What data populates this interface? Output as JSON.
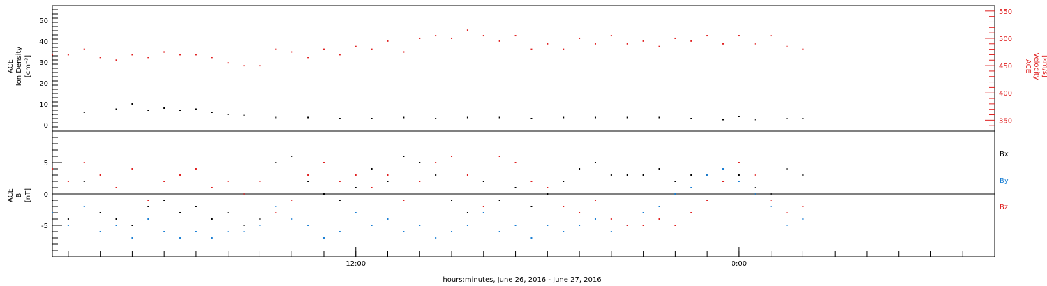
{
  "colors": {
    "density": "#000000",
    "velocity": "#e02020",
    "bx": "#000000",
    "by": "#1a7fd4",
    "bz": "#e02020",
    "axis": "#000000"
  },
  "x_axis": {
    "label": "hours:minutes, June 26, 2016 - June 27, 2016",
    "range_hours": [
      5,
      34.5
    ],
    "ticks": [
      {
        "hour": 14.5,
        "label": "12:00"
      },
      {
        "hour": 26.5,
        "label": "0:00"
      }
    ]
  },
  "chart_data": [
    {
      "type": "scatter",
      "panel": "top",
      "ylabel_left": [
        "ACE",
        "Ion Density",
        "[cm⁻³]"
      ],
      "ylabel_right": [
        "ACE",
        "Velocity",
        "[km/s]"
      ],
      "left_axis": {
        "range": [
          -3,
          57
        ],
        "ticks": [
          0,
          10,
          20,
          30,
          40,
          50
        ],
        "labels": [
          "0",
          "10",
          "20",
          "30",
          "40",
          "50"
        ]
      },
      "right_axis": {
        "range": [
          330,
          560
        ],
        "ticks": [
          350,
          400,
          450,
          500,
          550
        ],
        "labels": [
          "350",
          "400",
          "450",
          "500",
          "550"
        ]
      },
      "series": [
        {
          "key": "density",
          "axis": "left",
          "points": [
            [
              5.0,
              5
            ],
            [
              6.0,
              6
            ],
            [
              7.0,
              7.5
            ],
            [
              7.5,
              10
            ],
            [
              8.0,
              7
            ],
            [
              8.5,
              8
            ],
            [
              9.0,
              7
            ],
            [
              9.5,
              7.5
            ],
            [
              10.0,
              6
            ],
            [
              10.5,
              5
            ],
            [
              11.0,
              4.5
            ],
            [
              12.0,
              3.5
            ],
            [
              13.0,
              3.5
            ],
            [
              14.0,
              3
            ],
            [
              15.0,
              3
            ],
            [
              16.0,
              3.5
            ],
            [
              17.0,
              3
            ],
            [
              18.0,
              3.5
            ],
            [
              19.0,
              3.5
            ],
            [
              20.0,
              3
            ],
            [
              21.0,
              3.5
            ],
            [
              22.0,
              3.5
            ],
            [
              23.0,
              3.5
            ],
            [
              24.0,
              3.5
            ],
            [
              25.0,
              3
            ],
            [
              26.0,
              2.5
            ],
            [
              26.5,
              4
            ],
            [
              27.0,
              2.5
            ],
            [
              28.0,
              3
            ],
            [
              28.5,
              3
            ]
          ]
        },
        {
          "key": "velocity",
          "axis": "right",
          "points": [
            [
              5.0,
              470
            ],
            [
              5.5,
              470
            ],
            [
              6.0,
              480
            ],
            [
              6.5,
              465
            ],
            [
              7.0,
              460
            ],
            [
              7.5,
              470
            ],
            [
              8.0,
              465
            ],
            [
              8.5,
              475
            ],
            [
              9.0,
              470
            ],
            [
              9.5,
              470
            ],
            [
              10.0,
              465
            ],
            [
              10.5,
              455
            ],
            [
              11.0,
              450
            ],
            [
              11.5,
              450
            ],
            [
              12.0,
              480
            ],
            [
              12.5,
              475
            ],
            [
              13.0,
              465
            ],
            [
              13.5,
              480
            ],
            [
              14.0,
              470
            ],
            [
              14.5,
              485
            ],
            [
              15.0,
              480
            ],
            [
              15.5,
              495
            ],
            [
              16.0,
              475
            ],
            [
              16.5,
              500
            ],
            [
              17.0,
              505
            ],
            [
              17.5,
              500
            ],
            [
              18.0,
              515
            ],
            [
              18.5,
              505
            ],
            [
              19.0,
              495
            ],
            [
              19.5,
              505
            ],
            [
              20.0,
              480
            ],
            [
              20.5,
              490
            ],
            [
              21.0,
              480
            ],
            [
              21.5,
              500
            ],
            [
              22.0,
              490
            ],
            [
              22.5,
              505
            ],
            [
              23.0,
              490
            ],
            [
              23.5,
              495
            ],
            [
              24.0,
              485
            ],
            [
              24.5,
              500
            ],
            [
              25.0,
              495
            ],
            [
              25.5,
              505
            ],
            [
              26.0,
              490
            ],
            [
              26.5,
              505
            ],
            [
              27.0,
              490
            ],
            [
              27.5,
              505
            ],
            [
              28.0,
              485
            ],
            [
              28.5,
              480
            ]
          ]
        }
      ]
    },
    {
      "type": "scatter",
      "panel": "bottom",
      "ylabel_left": [
        "ACE",
        "B",
        "[nT]"
      ],
      "left_axis": {
        "range": [
          -10,
          10
        ],
        "ticks": [
          -5,
          0,
          5
        ],
        "labels": [
          "-5",
          "0",
          "5"
        ]
      },
      "legend": [
        "Bx",
        "By",
        "Bz"
      ],
      "series": [
        {
          "key": "bx",
          "name": "Bx",
          "points": [
            [
              5.0,
              -1
            ],
            [
              5.5,
              -4
            ],
            [
              6.0,
              2
            ],
            [
              6.5,
              -3
            ],
            [
              7.0,
              -4
            ],
            [
              7.5,
              -5
            ],
            [
              8.0,
              -2
            ],
            [
              8.5,
              -1
            ],
            [
              9.0,
              -3
            ],
            [
              9.5,
              -2
            ],
            [
              10.0,
              -4
            ],
            [
              10.5,
              -3
            ],
            [
              11.0,
              -5
            ],
            [
              11.5,
              -4
            ],
            [
              12.0,
              5
            ],
            [
              12.5,
              6
            ],
            [
              13.0,
              2
            ],
            [
              13.5,
              0
            ],
            [
              14.0,
              -1
            ],
            [
              14.5,
              1
            ],
            [
              15.0,
              4
            ],
            [
              15.5,
              2
            ],
            [
              16.0,
              6
            ],
            [
              16.5,
              5
            ],
            [
              17.0,
              3
            ],
            [
              17.5,
              -1
            ],
            [
              18.0,
              -3
            ],
            [
              18.5,
              2
            ],
            [
              19.0,
              -1
            ],
            [
              19.5,
              1
            ],
            [
              20.0,
              -2
            ],
            [
              20.5,
              0
            ],
            [
              21.0,
              2
            ],
            [
              21.5,
              4
            ],
            [
              22.0,
              5
            ],
            [
              22.5,
              3
            ],
            [
              23.0,
              3
            ],
            [
              23.5,
              3
            ],
            [
              24.0,
              4
            ],
            [
              24.5,
              2
            ],
            [
              25.0,
              3
            ],
            [
              25.5,
              3
            ],
            [
              26.0,
              2
            ],
            [
              26.5,
              3
            ],
            [
              27.0,
              1
            ],
            [
              27.5,
              0
            ],
            [
              28.0,
              4
            ],
            [
              28.5,
              3
            ]
          ]
        },
        {
          "key": "by",
          "name": "By",
          "points": [
            [
              5.0,
              -3
            ],
            [
              5.5,
              -5
            ],
            [
              6.0,
              -2
            ],
            [
              6.5,
              -6
            ],
            [
              7.0,
              -5
            ],
            [
              7.5,
              -7
            ],
            [
              8.0,
              -4
            ],
            [
              8.5,
              -6
            ],
            [
              9.0,
              -7
            ],
            [
              9.5,
              -6
            ],
            [
              10.0,
              -7
            ],
            [
              10.5,
              -6
            ],
            [
              11.0,
              -6
            ],
            [
              11.5,
              -5
            ],
            [
              12.0,
              -2
            ],
            [
              12.5,
              -4
            ],
            [
              13.0,
              -5
            ],
            [
              13.5,
              -7
            ],
            [
              14.0,
              -6
            ],
            [
              14.5,
              -3
            ],
            [
              15.0,
              -5
            ],
            [
              15.5,
              -4
            ],
            [
              16.0,
              -6
            ],
            [
              16.5,
              -5
            ],
            [
              17.0,
              -7
            ],
            [
              17.5,
              -6
            ],
            [
              18.0,
              -5
            ],
            [
              18.5,
              -3
            ],
            [
              19.0,
              -6
            ],
            [
              19.5,
              -5
            ],
            [
              20.0,
              -7
            ],
            [
              20.5,
              -5
            ],
            [
              21.0,
              -6
            ],
            [
              21.5,
              -5
            ],
            [
              22.0,
              -4
            ],
            [
              22.5,
              -6
            ],
            [
              23.0,
              -5
            ],
            [
              23.5,
              -3
            ],
            [
              24.0,
              -2
            ],
            [
              24.5,
              0
            ],
            [
              25.0,
              1
            ],
            [
              25.5,
              3
            ],
            [
              26.0,
              4
            ],
            [
              26.5,
              2
            ],
            [
              27.0,
              0
            ],
            [
              27.5,
              -2
            ],
            [
              28.0,
              -5
            ],
            [
              28.5,
              -4
            ]
          ]
        },
        {
          "key": "bz",
          "name": "Bz",
          "points": [
            [
              5.0,
              4
            ],
            [
              5.5,
              2
            ],
            [
              6.0,
              5
            ],
            [
              6.5,
              3
            ],
            [
              7.0,
              1
            ],
            [
              7.5,
              4
            ],
            [
              8.0,
              -1
            ],
            [
              8.5,
              2
            ],
            [
              9.0,
              3
            ],
            [
              9.5,
              4
            ],
            [
              10.0,
              1
            ],
            [
              10.5,
              2
            ],
            [
              11.0,
              0
            ],
            [
              11.5,
              2
            ],
            [
              12.0,
              -3
            ],
            [
              12.5,
              -1
            ],
            [
              13.0,
              3
            ],
            [
              13.5,
              5
            ],
            [
              14.0,
              2
            ],
            [
              14.5,
              3
            ],
            [
              15.0,
              1
            ],
            [
              15.5,
              3
            ],
            [
              16.0,
              -1
            ],
            [
              16.5,
              2
            ],
            [
              17.0,
              5
            ],
            [
              17.5,
              6
            ],
            [
              18.0,
              3
            ],
            [
              18.5,
              -2
            ],
            [
              19.0,
              6
            ],
            [
              19.5,
              5
            ],
            [
              20.0,
              2
            ],
            [
              20.5,
              1
            ],
            [
              21.0,
              -2
            ],
            [
              21.5,
              -3
            ],
            [
              22.0,
              -1
            ],
            [
              22.5,
              -4
            ],
            [
              23.0,
              -5
            ],
            [
              23.5,
              -5
            ],
            [
              24.0,
              -4
            ],
            [
              24.5,
              -5
            ],
            [
              25.0,
              -3
            ],
            [
              25.5,
              -1
            ],
            [
              26.0,
              2
            ],
            [
              26.5,
              5
            ],
            [
              27.0,
              3
            ],
            [
              27.5,
              -1
            ],
            [
              28.0,
              -3
            ],
            [
              28.5,
              -2
            ]
          ]
        }
      ]
    }
  ]
}
